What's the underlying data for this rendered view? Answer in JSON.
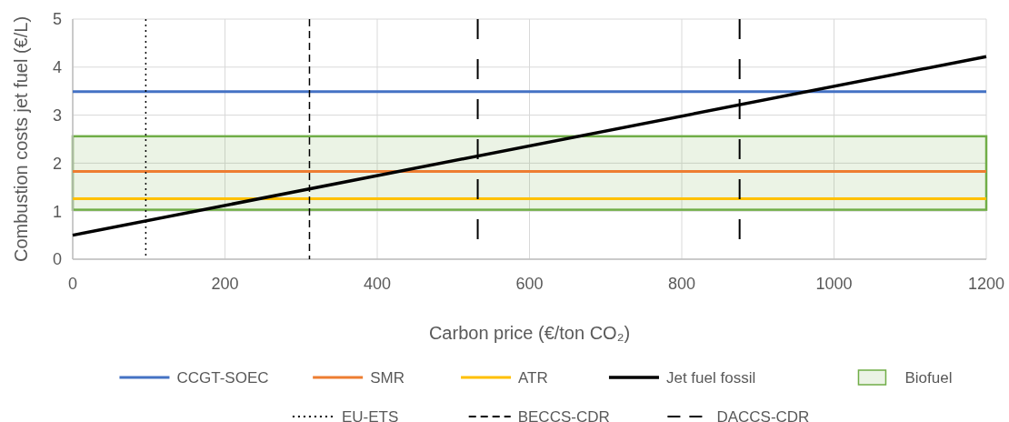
{
  "chart_data": {
    "type": "line",
    "xlabel": "Carbon price (€/ton CO₂)",
    "ylabel": "Combustion costs jet fuel (€/L)",
    "xlim": [
      0,
      1200
    ],
    "xticks": [
      0,
      200,
      400,
      600,
      800,
      1000,
      1200
    ],
    "ylim": [
      0,
      5
    ],
    "yticks": [
      0,
      1,
      2,
      3,
      4,
      5
    ],
    "grid": true,
    "legend": "bottom",
    "line_style": "solid",
    "series": [
      {
        "name": "Jet fuel fossil",
        "color": "#000000",
        "x": [
          0,
          1200
        ],
        "values": [
          0.5,
          4.22
        ]
      }
    ],
    "bands": [
      {
        "axis": "y",
        "from": 1.03,
        "to": 2.56,
        "label": "Biofuel",
        "color": "#70ad47"
      }
    ],
    "ref_lines": [
      {
        "axis": "y",
        "value": 3.49,
        "label": "CCGT-SOEC",
        "color": "#4472c4",
        "line_style": "solid"
      },
      {
        "axis": "y",
        "value": 1.83,
        "label": "SMR",
        "color": "#ed7d31",
        "line_style": "solid"
      },
      {
        "axis": "y",
        "value": 1.26,
        "label": "ATR",
        "color": "#ffc000",
        "line_style": "solid"
      },
      {
        "axis": "x",
        "value": 96,
        "label": "EU-ETS",
        "color": "#000000",
        "line_style": "dotted"
      },
      {
        "axis": "x",
        "value": 311,
        "label": "BECCS-CDR",
        "color": "#000000",
        "line_style": "dashed"
      },
      {
        "axis": "x",
        "value": 532,
        "label": "DACCS-CDR",
        "color": "#000000",
        "line_style": "dashed"
      },
      {
        "axis": "x",
        "value": 876,
        "color": "#000000",
        "line_style": "dashed"
      }
    ]
  }
}
